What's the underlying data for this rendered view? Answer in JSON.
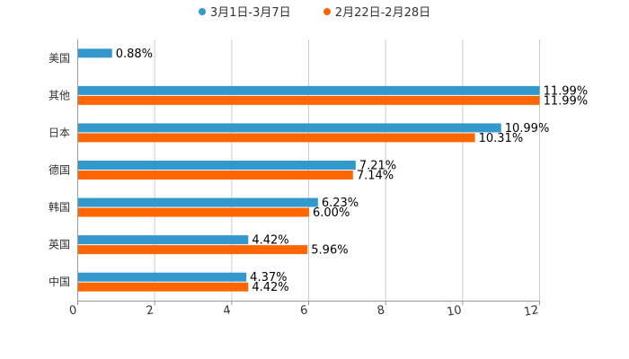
{
  "chart_data": {
    "type": "bar",
    "orientation": "horizontal",
    "title": "",
    "xlabel": "",
    "ylabel": "",
    "xlim": [
      0,
      12
    ],
    "xticks": [
      0,
      2,
      4,
      6,
      8,
      10,
      12
    ],
    "grid": true,
    "legend_position": "top",
    "categories": [
      "美国",
      "其他",
      "日本",
      "德国",
      "韩国",
      "英国",
      "中国"
    ],
    "series": [
      {
        "name": "3月1日-3月7日",
        "color": "#3399cc",
        "values": [
          0.88,
          11.99,
          10.99,
          7.21,
          6.23,
          4.42,
          4.37
        ],
        "labels": [
          "0.88%",
          "11.99%",
          "10.99%",
          "7.21%",
          "6.23%",
          "4.42%",
          "4.37%"
        ]
      },
      {
        "name": "2月22日-2月28日",
        "color": "#ff6600",
        "values": [
          null,
          11.99,
          10.31,
          7.14,
          6.0,
          5.96,
          4.42
        ],
        "labels": [
          "",
          "11.99%",
          "10.31%",
          "7.14%",
          "6.00%",
          "5.96%",
          "4.42%"
        ]
      }
    ]
  }
}
